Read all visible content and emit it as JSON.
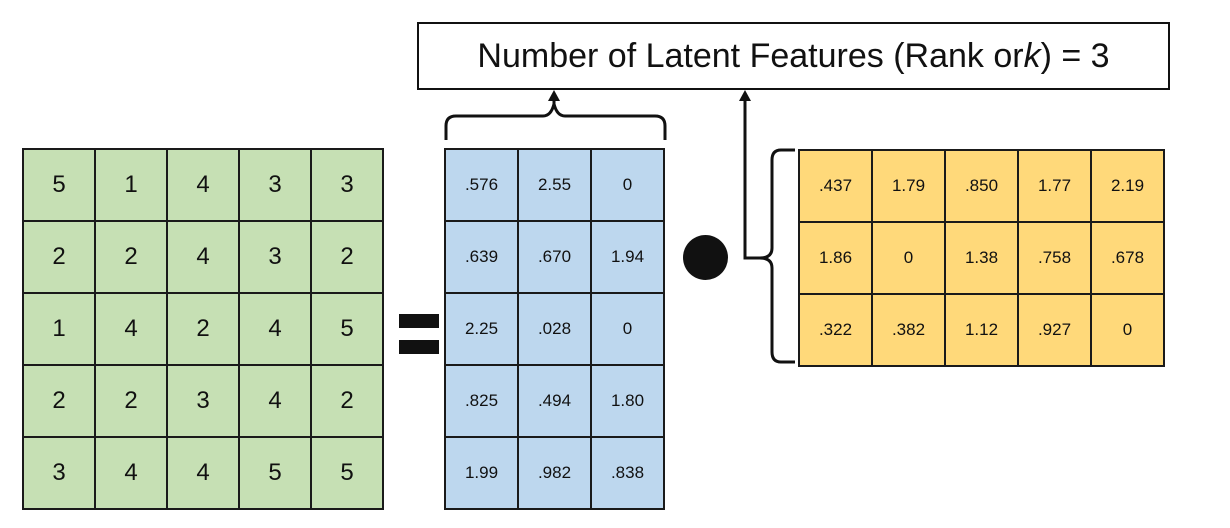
{
  "title": {
    "prefix": "Number of Latent Features (Rank or ",
    "variable": "k",
    "suffix": ") = 3"
  },
  "ratings_matrix": [
    [
      "5",
      "1",
      "4",
      "3",
      "3"
    ],
    [
      "2",
      "2",
      "4",
      "3",
      "2"
    ],
    [
      "1",
      "4",
      "2",
      "4",
      "5"
    ],
    [
      "2",
      "2",
      "3",
      "4",
      "2"
    ],
    [
      "3",
      "4",
      "4",
      "5",
      "5"
    ]
  ],
  "user_matrix": [
    [
      ".576",
      "2.55",
      "0"
    ],
    [
      ".639",
      ".670",
      "1.94"
    ],
    [
      "2.25",
      ".028",
      "0"
    ],
    [
      ".825",
      ".494",
      "1.80"
    ],
    [
      "1.99",
      ".982",
      ".838"
    ]
  ],
  "item_matrix": [
    [
      ".437",
      "1.79",
      ".850",
      "1.77",
      "2.19"
    ],
    [
      "1.86",
      "0",
      "1.38",
      ".758",
      ".678"
    ],
    [
      ".322",
      ".382",
      "1.12",
      ".927",
      "0"
    ]
  ],
  "colors": {
    "ratings": "#c6e0b4",
    "user": "#bdd7ee",
    "item": "#ffd97a",
    "line": "#111111"
  }
}
